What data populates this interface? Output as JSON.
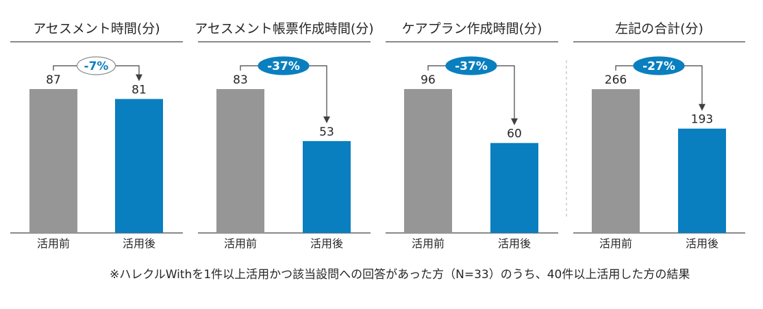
{
  "colors": {
    "before": "#969696",
    "after": "#0a7fbf",
    "badge_fill": "#0a7fbf",
    "text": "#262626",
    "line": "#404040",
    "separator": "#b0b0b0"
  },
  "chart_data": [
    {
      "type": "bar",
      "title": "アセスメント時間(分)",
      "categories": [
        "活用前",
        "活用後"
      ],
      "values": [
        87,
        81
      ],
      "change": "-7%",
      "change_style": "outline"
    },
    {
      "type": "bar",
      "title": "アセスメント帳票作成時間(分)",
      "categories": [
        "活用前",
        "活用後"
      ],
      "values": [
        83,
        53
      ],
      "change": "-37%",
      "change_style": "filled"
    },
    {
      "type": "bar",
      "title": "ケアプラン作成時間(分)",
      "categories": [
        "活用前",
        "活用後"
      ],
      "values": [
        96,
        60
      ],
      "change": "-37%",
      "change_style": "filled"
    },
    {
      "type": "bar",
      "title": "左記の合計(分)",
      "categories": [
        "活用前",
        "活用後"
      ],
      "values": [
        266,
        193
      ],
      "change": "-27%",
      "change_style": "filled"
    }
  ],
  "footnote": "※ハレクルWithを1件以上活用かつ該当設問への回答があった方（N=33）のうち、40件以上活用した方の結果"
}
